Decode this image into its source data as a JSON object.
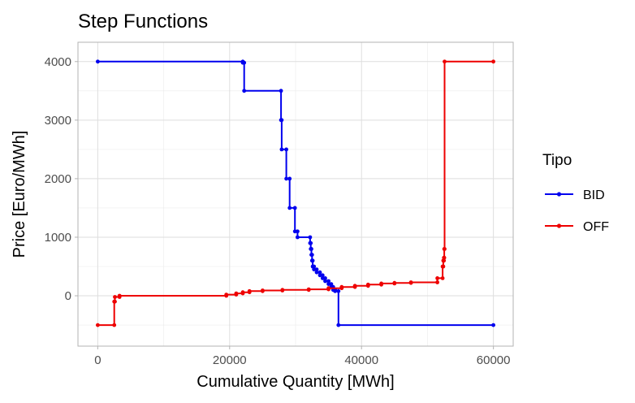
{
  "chart_data": {
    "type": "line",
    "title": "Step Functions",
    "xlabel": "Cumulative Quantity [MWh]",
    "ylabel": "Price [Euro/MWh]",
    "xlim": [
      -3000,
      63000
    ],
    "ylim": [
      -860,
      4330
    ],
    "x_ticks": [
      0,
      20000,
      40000,
      60000
    ],
    "x_tick_labels": [
      "0",
      "20000",
      "40000",
      "60000"
    ],
    "y_ticks": [
      0,
      1000,
      2000,
      3000,
      4000
    ],
    "y_tick_labels": [
      "0",
      "1000",
      "2000",
      "3000",
      "4000"
    ],
    "grid": true,
    "step": true,
    "legend": {
      "title": "Tipo",
      "position": "right"
    },
    "series": [
      {
        "name": "BID",
        "color": "#0000ee",
        "x": [
          0,
          22000,
          22000,
          22200,
          22200,
          27800,
          27800,
          27900,
          27900,
          28600,
          28600,
          29100,
          29100,
          29900,
          29900,
          30300,
          30300,
          32200,
          32200,
          32300,
          32300,
          32400,
          32400,
          32500,
          32500,
          32600,
          32600,
          32800,
          32800,
          33200,
          33200,
          33700,
          33700,
          34100,
          34100,
          34500,
          34500,
          35000,
          35000,
          35400,
          35400,
          35700,
          35700,
          36000,
          36000,
          36500,
          36500,
          60000
        ],
        "y": [
          4000,
          4000,
          3980,
          3980,
          3500,
          3500,
          3000,
          3000,
          2500,
          2500,
          2000,
          2000,
          1500,
          1500,
          1100,
          1100,
          1000,
          1000,
          900,
          900,
          800,
          800,
          700,
          700,
          600,
          600,
          500,
          500,
          450,
          450,
          400,
          400,
          350,
          350,
          300,
          300,
          250,
          250,
          200,
          200,
          150,
          150,
          100,
          100,
          80,
          80,
          -500,
          -500
        ]
      },
      {
        "name": "OFF",
        "color": "#ee0000",
        "x": [
          0,
          2500,
          2500,
          2600,
          2600,
          3300,
          3300,
          19500,
          19500,
          21000,
          21000,
          22000,
          22000,
          23000,
          23000,
          25000,
          25000,
          28000,
          28000,
          32000,
          32000,
          35000,
          35000,
          37000,
          37000,
          39000,
          39000,
          41000,
          41000,
          43000,
          43000,
          45000,
          45000,
          47500,
          47500,
          51500,
          51500,
          52300,
          52300,
          52400,
          52400,
          52500,
          52500,
          52550,
          52550,
          52600,
          52600,
          60000
        ],
        "y": [
          -500,
          -500,
          -100,
          -100,
          -20,
          -20,
          0,
          0,
          20,
          20,
          40,
          40,
          60,
          60,
          80,
          80,
          90,
          90,
          100,
          100,
          110,
          110,
          130,
          130,
          150,
          150,
          170,
          170,
          190,
          190,
          210,
          210,
          220,
          220,
          230,
          230,
          300,
          300,
          500,
          500,
          600,
          600,
          650,
          650,
          800,
          800,
          4000,
          4000
        ]
      }
    ]
  }
}
